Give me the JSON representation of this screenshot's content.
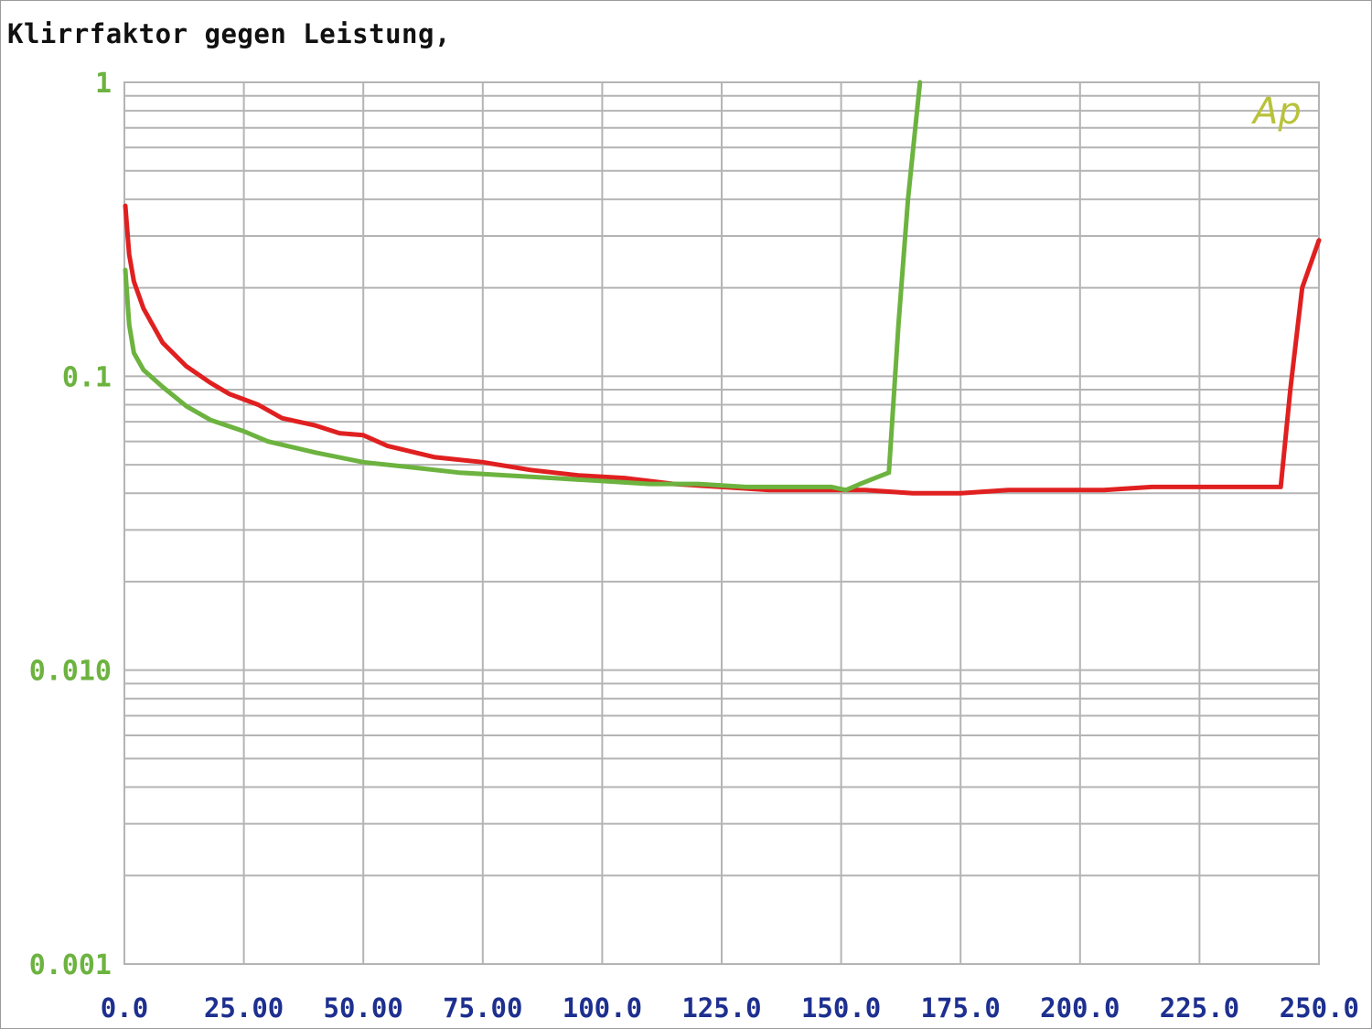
{
  "title": "Klirrfaktor gegen Leistung,",
  "logo": "Ap",
  "chart_data": {
    "type": "line",
    "title": "Klirrfaktor gegen Leistung,",
    "xlabel": "",
    "ylabel": "",
    "xlim": [
      0,
      250
    ],
    "ylim": [
      0.001,
      1
    ],
    "yscale": "log",
    "grid": true,
    "x_ticks": [
      "0.0",
      "25.00",
      "50.00",
      "75.00",
      "100.0",
      "125.0",
      "150.0",
      "175.0",
      "200.0",
      "225.0",
      "250.0"
    ],
    "x_tick_values": [
      0,
      25,
      50,
      75,
      100,
      125,
      150,
      175,
      200,
      225,
      250
    ],
    "y_ticks": [
      "1",
      "0.1",
      "0.010",
      "0.001"
    ],
    "y_tick_values": [
      1,
      0.1,
      0.01,
      0.001
    ],
    "series": [
      {
        "color": "#e02020",
        "points": [
          [
            0.2,
            0.38
          ],
          [
            1,
            0.26
          ],
          [
            2,
            0.21
          ],
          [
            4,
            0.17
          ],
          [
            8,
            0.13
          ],
          [
            13,
            0.108
          ],
          [
            18,
            0.095
          ],
          [
            22,
            0.087
          ],
          [
            28,
            0.08
          ],
          [
            33,
            0.072
          ],
          [
            40,
            0.068
          ],
          [
            45,
            0.064
          ],
          [
            50,
            0.063
          ],
          [
            55,
            0.058
          ],
          [
            65,
            0.053
          ],
          [
            75,
            0.051
          ],
          [
            85,
            0.048
          ],
          [
            95,
            0.046
          ],
          [
            105,
            0.045
          ],
          [
            115,
            0.043
          ],
          [
            125,
            0.042
          ],
          [
            135,
            0.041
          ],
          [
            145,
            0.041
          ],
          [
            155,
            0.041
          ],
          [
            165,
            0.04
          ],
          [
            175,
            0.04
          ],
          [
            185,
            0.041
          ],
          [
            195,
            0.041
          ],
          [
            205,
            0.041
          ],
          [
            215,
            0.042
          ],
          [
            225,
            0.042
          ],
          [
            235,
            0.042
          ],
          [
            242,
            0.042
          ],
          [
            244,
            0.09
          ],
          [
            246.5,
            0.2
          ],
          [
            250,
            0.29
          ]
        ]
      },
      {
        "color": "#6cb33f",
        "points": [
          [
            0.2,
            0.23
          ],
          [
            1,
            0.15
          ],
          [
            2,
            0.12
          ],
          [
            4,
            0.105
          ],
          [
            8,
            0.092
          ],
          [
            13,
            0.079
          ],
          [
            18,
            0.071
          ],
          [
            25,
            0.065
          ],
          [
            30,
            0.06
          ],
          [
            40,
            0.055
          ],
          [
            50,
            0.051
          ],
          [
            60,
            0.049
          ],
          [
            70,
            0.047
          ],
          [
            80,
            0.046
          ],
          [
            90,
            0.045
          ],
          [
            100,
            0.044
          ],
          [
            110,
            0.043
          ],
          [
            120,
            0.043
          ],
          [
            130,
            0.042
          ],
          [
            140,
            0.042
          ],
          [
            148,
            0.042
          ],
          [
            151,
            0.041
          ],
          [
            154,
            0.043
          ],
          [
            157,
            0.045
          ],
          [
            160,
            0.047
          ],
          [
            162,
            0.15
          ],
          [
            164,
            0.4
          ],
          [
            166.5,
            1.0
          ]
        ]
      }
    ]
  }
}
